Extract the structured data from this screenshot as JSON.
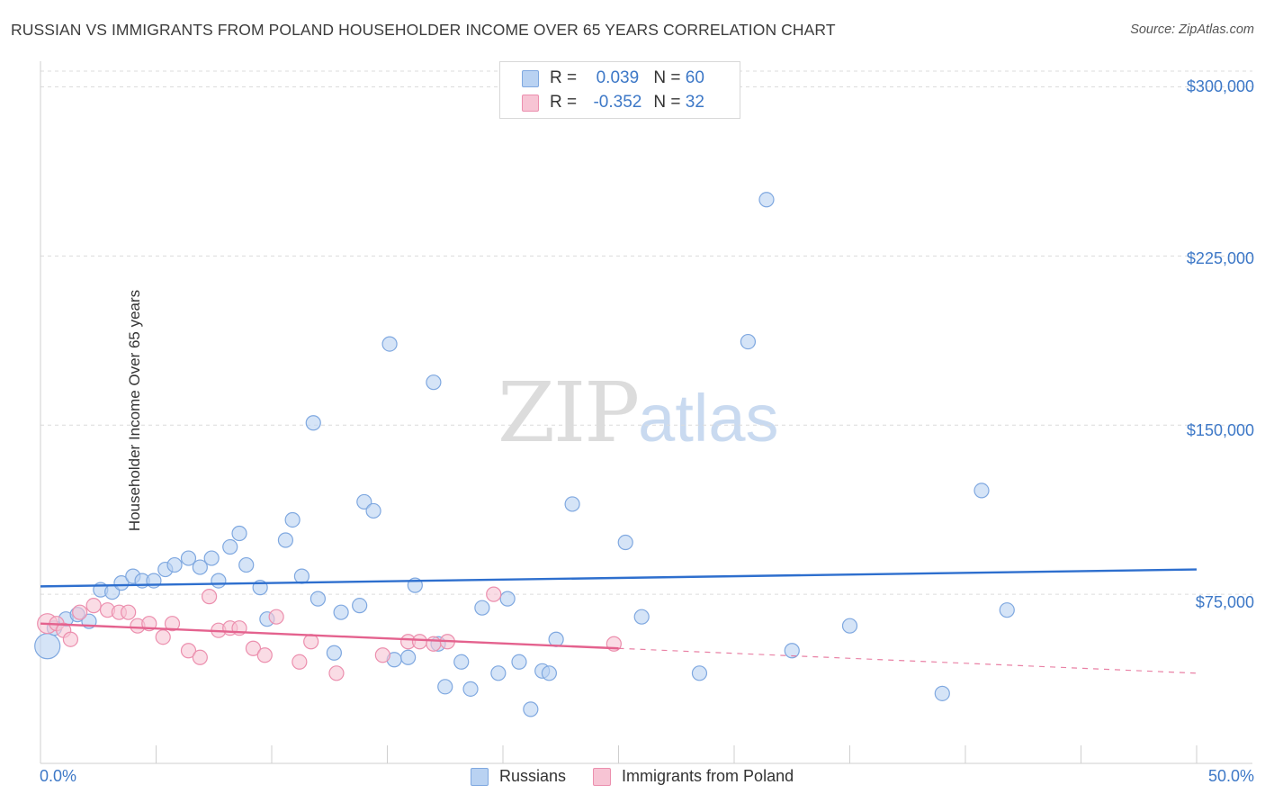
{
  "title": "RUSSIAN VS IMMIGRANTS FROM POLAND HOUSEHOLDER INCOME OVER 65 YEARS CORRELATION CHART",
  "source": "Source: ZipAtlas.com",
  "watermark": {
    "zip": "ZIP",
    "atlas": "atlas"
  },
  "colors": {
    "russians_fill": "#b9d2f2",
    "russians_stroke": "#7fa8e0",
    "russians_line": "#2e6fce",
    "poland_fill": "#f7c4d4",
    "poland_stroke": "#ec8fae",
    "poland_line": "#e4628e",
    "tick_text": "#3d78c7",
    "grid": "#dcdcdc"
  },
  "legend": {
    "rows": [
      {
        "r_label": "R =",
        "r_value": "0.039",
        "n_label": "N =",
        "n_value": "60"
      },
      {
        "r_label": "R =",
        "r_value": "-0.352",
        "n_label": "N =",
        "n_value": "32"
      }
    ]
  },
  "bottom_legend": [
    "Russians",
    "Immigrants from Poland"
  ],
  "chart_data": {
    "type": "scatter",
    "title": "RUSSIAN VS IMMIGRANTS FROM POLAND HOUSEHOLDER INCOME OVER 65 YEARS CORRELATION CHART",
    "xlabel": "",
    "ylabel": "Householder Income Over 65 years",
    "xlim": [
      0,
      50
    ],
    "ylim": [
      0,
      307000
    ],
    "x_tick_labels": [
      "0.0%",
      "50.0%"
    ],
    "y_ticks": [
      75000,
      150000,
      225000,
      300000
    ],
    "y_tick_labels": [
      "$75,000",
      "$150,000",
      "$225,000",
      "$300,000"
    ],
    "grid": true,
    "legend_position": "top-center",
    "series": [
      {
        "name": "Russians",
        "points": [
          [
            0.3,
            52000
          ],
          [
            0.6,
            60000
          ],
          [
            1.1,
            64000
          ],
          [
            1.6,
            66000
          ],
          [
            2.1,
            63000
          ],
          [
            2.6,
            77000
          ],
          [
            3.1,
            76000
          ],
          [
            3.5,
            80000
          ],
          [
            4.0,
            83000
          ],
          [
            4.4,
            81000
          ],
          [
            4.9,
            81000
          ],
          [
            5.4,
            86000
          ],
          [
            5.8,
            88000
          ],
          [
            6.4,
            91000
          ],
          [
            6.9,
            87000
          ],
          [
            7.4,
            91000
          ],
          [
            7.7,
            81000
          ],
          [
            8.2,
            96000
          ],
          [
            8.6,
            102000
          ],
          [
            8.9,
            88000
          ],
          [
            9.5,
            78000
          ],
          [
            9.8,
            64000
          ],
          [
            10.6,
            99000
          ],
          [
            10.9,
            108000
          ],
          [
            11.3,
            83000
          ],
          [
            11.8,
            151000
          ],
          [
            12.0,
            73000
          ],
          [
            12.7,
            49000
          ],
          [
            13.0,
            67000
          ],
          [
            13.8,
            70000
          ],
          [
            14.0,
            116000
          ],
          [
            14.4,
            112000
          ],
          [
            15.1,
            186000
          ],
          [
            15.3,
            46000
          ],
          [
            15.9,
            47000
          ],
          [
            16.2,
            79000
          ],
          [
            17.0,
            169000
          ],
          [
            17.2,
            53000
          ],
          [
            17.5,
            34000
          ],
          [
            18.2,
            45000
          ],
          [
            18.6,
            33000
          ],
          [
            19.1,
            69000
          ],
          [
            19.8,
            40000
          ],
          [
            20.2,
            73000
          ],
          [
            20.7,
            45000
          ],
          [
            21.2,
            24000
          ],
          [
            21.7,
            41000
          ],
          [
            22.0,
            40000
          ],
          [
            22.3,
            55000
          ],
          [
            23.0,
            115000
          ],
          [
            25.3,
            98000
          ],
          [
            26.0,
            65000
          ],
          [
            28.5,
            40000
          ],
          [
            30.6,
            187000
          ],
          [
            31.4,
            250000
          ],
          [
            32.5,
            50000
          ],
          [
            35.0,
            61000
          ],
          [
            39.0,
            31000
          ],
          [
            40.7,
            121000
          ],
          [
            41.8,
            68000
          ]
        ]
      },
      {
        "name": "Immigrants from Poland",
        "points": [
          [
            0.3,
            62000
          ],
          [
            0.7,
            62000
          ],
          [
            1.0,
            59000
          ],
          [
            1.3,
            55000
          ],
          [
            1.7,
            67000
          ],
          [
            2.3,
            70000
          ],
          [
            2.9,
            68000
          ],
          [
            3.4,
            67000
          ],
          [
            3.8,
            67000
          ],
          [
            4.2,
            61000
          ],
          [
            4.7,
            62000
          ],
          [
            5.3,
            56000
          ],
          [
            5.7,
            62000
          ],
          [
            6.4,
            50000
          ],
          [
            6.9,
            47000
          ],
          [
            7.3,
            74000
          ],
          [
            7.7,
            59000
          ],
          [
            8.2,
            60000
          ],
          [
            8.6,
            60000
          ],
          [
            9.2,
            51000
          ],
          [
            9.7,
            48000
          ],
          [
            10.2,
            65000
          ],
          [
            11.2,
            45000
          ],
          [
            11.7,
            54000
          ],
          [
            12.8,
            40000
          ],
          [
            14.8,
            48000
          ],
          [
            15.9,
            54000
          ],
          [
            16.4,
            54000
          ],
          [
            17.0,
            53000
          ],
          [
            17.6,
            54000
          ],
          [
            19.6,
            75000
          ],
          [
            24.8,
            53000
          ]
        ]
      }
    ],
    "trend_lines": [
      {
        "series": "Russians",
        "x": [
          0,
          50
        ],
        "y": [
          78500,
          86000
        ]
      },
      {
        "series": "Immigrants from Poland",
        "x": [
          0,
          25
        ],
        "y": [
          62000,
          51000
        ],
        "dashed_to": [
          50,
          40000
        ]
      }
    ]
  }
}
